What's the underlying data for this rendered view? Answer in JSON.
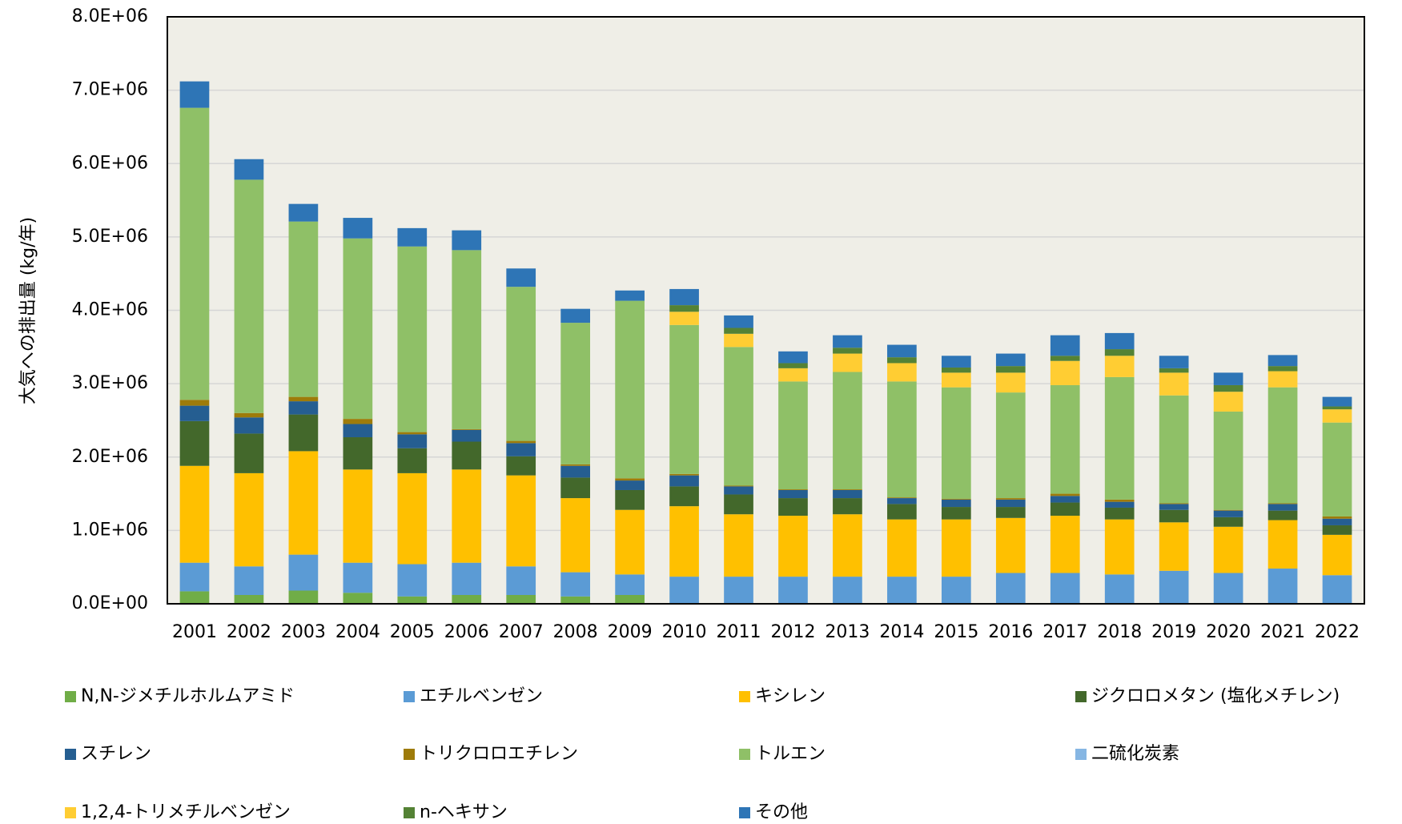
{
  "chart_data": {
    "type": "stacked_bar",
    "y_label": "大気への排出量 (kg/年)",
    "categories": [
      "2001",
      "2002",
      "2003",
      "2004",
      "2005",
      "2006",
      "2007",
      "2008",
      "2009",
      "2010",
      "2011",
      "2012",
      "2013",
      "2014",
      "2015",
      "2016",
      "2017",
      "2018",
      "2019",
      "2020",
      "2021",
      "2022"
    ],
    "ylim": [
      0,
      8000000
    ],
    "yticks": [
      {
        "value": 0,
        "label": "0.0E+00"
      },
      {
        "value": 1000000,
        "label": "1.0E+06"
      },
      {
        "value": 2000000,
        "label": "2.0E+06"
      },
      {
        "value": 3000000,
        "label": "3.0E+06"
      },
      {
        "value": 4000000,
        "label": "4.0E+06"
      },
      {
        "value": 5000000,
        "label": "5.0E+06"
      },
      {
        "value": 6000000,
        "label": "6.0E+06"
      },
      {
        "value": 7000000,
        "label": "7.0E+06"
      },
      {
        "value": 8000000,
        "label": "8.0E+06"
      }
    ],
    "grid": true,
    "legend": "bottom",
    "series": [
      {
        "name": "N,N-ジメチルホルムアミド",
        "color": "#70ad47",
        "values": [
          170000,
          120000,
          180000,
          150000,
          100000,
          120000,
          120000,
          100000,
          120000,
          0,
          0,
          0,
          0,
          0,
          0,
          0,
          0,
          0,
          0,
          0,
          0,
          0
        ]
      },
      {
        "name": "エチルベンゼン",
        "color": "#5b9bd5",
        "values": [
          390000,
          390000,
          490000,
          410000,
          440000,
          440000,
          390000,
          330000,
          280000,
          370000,
          370000,
          370000,
          370000,
          370000,
          370000,
          420000,
          420000,
          400000,
          450000,
          420000,
          480000,
          390000
        ]
      },
      {
        "name": "キシレン",
        "color": "#ffc000",
        "values": [
          1320000,
          1270000,
          1410000,
          1270000,
          1240000,
          1270000,
          1240000,
          1010000,
          880000,
          960000,
          850000,
          830000,
          850000,
          780000,
          780000,
          750000,
          780000,
          750000,
          660000,
          630000,
          660000,
          550000
        ]
      },
      {
        "name": "ジクロロメタン (塩化メチレン)",
        "color": "#43682b",
        "values": [
          610000,
          540000,
          500000,
          440000,
          340000,
          380000,
          260000,
          280000,
          270000,
          270000,
          270000,
          240000,
          220000,
          210000,
          170000,
          150000,
          180000,
          160000,
          170000,
          130000,
          130000,
          130000
        ]
      },
      {
        "name": "スチレン",
        "color": "#255e91",
        "values": [
          210000,
          220000,
          180000,
          180000,
          190000,
          160000,
          180000,
          160000,
          130000,
          150000,
          110000,
          110000,
          110000,
          80000,
          100000,
          100000,
          90000,
          80000,
          80000,
          90000,
          90000,
          90000
        ]
      },
      {
        "name": "トリクロロエチレン",
        "color": "#9e7b0a",
        "values": [
          80000,
          60000,
          60000,
          70000,
          30000,
          10000,
          30000,
          20000,
          30000,
          20000,
          10000,
          10000,
          10000,
          10000,
          10000,
          20000,
          30000,
          30000,
          10000,
          10000,
          10000,
          30000
        ]
      },
      {
        "name": "トルエン",
        "color": "#8fc067",
        "values": [
          3980000,
          3180000,
          2390000,
          2460000,
          2530000,
          2440000,
          2100000,
          1930000,
          2420000,
          2030000,
          1890000,
          1470000,
          1600000,
          1580000,
          1520000,
          1440000,
          1480000,
          1670000,
          1470000,
          1340000,
          1580000,
          1280000
        ]
      },
      {
        "name": "二硫化炭素",
        "color": "#86b6e3",
        "values": [
          0,
          0,
          0,
          0,
          0,
          0,
          0,
          0,
          0,
          0,
          0,
          0,
          0,
          0,
          0,
          0,
          0,
          0,
          0,
          0,
          0,
          0
        ]
      },
      {
        "name": "1,2,4-トリメチルベンゼン",
        "color": "#ffcd33",
        "values": [
          0,
          0,
          0,
          0,
          0,
          0,
          0,
          0,
          0,
          180000,
          180000,
          180000,
          250000,
          250000,
          200000,
          270000,
          330000,
          290000,
          310000,
          270000,
          220000,
          180000
        ]
      },
      {
        "name": "n-ヘキサン",
        "color": "#548235",
        "values": [
          0,
          0,
          0,
          0,
          0,
          0,
          0,
          0,
          0,
          90000,
          80000,
          70000,
          80000,
          80000,
          70000,
          90000,
          70000,
          90000,
          60000,
          90000,
          70000,
          40000
        ]
      },
      {
        "name": "その他",
        "color": "#2e75b6",
        "values": [
          360000,
          280000,
          240000,
          280000,
          250000,
          270000,
          250000,
          190000,
          140000,
          220000,
          170000,
          160000,
          170000,
          170000,
          160000,
          170000,
          280000,
          220000,
          170000,
          170000,
          150000,
          130000
        ]
      }
    ]
  }
}
